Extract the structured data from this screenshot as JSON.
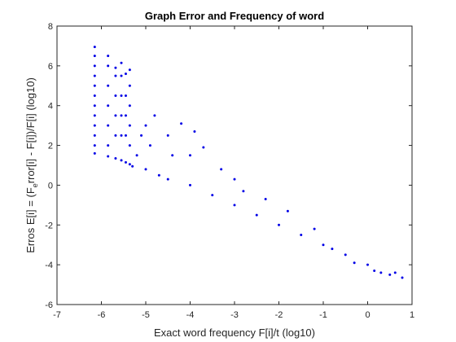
{
  "chart_data": {
    "type": "scatter",
    "title": "Graph Error and Frequency of word",
    "xlabel": "Exact word frequency F[i]/t (log10)",
    "ylabel_parts": [
      "Erros E[i] = (F",
      "e",
      "rror[i] - F[i])/F[i] (log10)"
    ],
    "xlim": [
      -7,
      1
    ],
    "ylim": [
      -6,
      8
    ],
    "xticks": [
      -7,
      -6,
      -5,
      -4,
      -3,
      -2,
      -1,
      0,
      1
    ],
    "yticks": [
      -6,
      -4,
      -2,
      0,
      2,
      4,
      6,
      8
    ],
    "xtick_labels": [
      "-7",
      "-6",
      "-5",
      "-4",
      "-3",
      "-2",
      "-1",
      "0",
      "1"
    ],
    "ytick_labels": [
      "-6",
      "-4",
      "-2",
      "0",
      "2",
      "4",
      "6",
      "8"
    ],
    "grid": false,
    "marker_color": "#0000e6",
    "series": [
      {
        "points": [
          [
            -6.15,
            1.6
          ],
          [
            -6.15,
            2.0
          ],
          [
            -6.15,
            2.5
          ],
          [
            -6.15,
            3.0
          ],
          [
            -6.15,
            3.5
          ],
          [
            -6.15,
            4.0
          ],
          [
            -6.15,
            4.5
          ],
          [
            -6.15,
            5.0
          ],
          [
            -6.15,
            5.5
          ],
          [
            -6.15,
            6.0
          ],
          [
            -6.15,
            6.5
          ],
          [
            -6.15,
            6.95
          ],
          [
            -5.85,
            1.45
          ],
          [
            -5.85,
            2.0
          ],
          [
            -5.85,
            3.0
          ],
          [
            -5.85,
            4.0
          ],
          [
            -5.85,
            5.0
          ],
          [
            -5.85,
            6.0
          ],
          [
            -5.85,
            6.5
          ],
          [
            -5.68,
            1.35
          ],
          [
            -5.68,
            2.5
          ],
          [
            -5.68,
            3.5
          ],
          [
            -5.68,
            4.5
          ],
          [
            -5.68,
            5.5
          ],
          [
            -5.68,
            5.9
          ],
          [
            -5.55,
            1.25
          ],
          [
            -5.55,
            2.5
          ],
          [
            -5.55,
            3.5
          ],
          [
            -5.55,
            4.5
          ],
          [
            -5.55,
            5.5
          ],
          [
            -5.55,
            6.15
          ],
          [
            -5.45,
            1.15
          ],
          [
            -5.45,
            2.5
          ],
          [
            -5.45,
            3.5
          ],
          [
            -5.45,
            4.5
          ],
          [
            -5.45,
            5.6
          ],
          [
            -5.36,
            1.05
          ],
          [
            -5.36,
            2.0
          ],
          [
            -5.36,
            3.0
          ],
          [
            -5.36,
            4.0
          ],
          [
            -5.36,
            5.0
          ],
          [
            -5.36,
            5.8
          ],
          [
            -5.3,
            0.95
          ],
          [
            -5.2,
            1.5
          ],
          [
            -5.1,
            2.5
          ],
          [
            -5.0,
            3.0
          ],
          [
            -5.0,
            0.8
          ],
          [
            -4.9,
            2.0
          ],
          [
            -4.8,
            3.5
          ],
          [
            -4.7,
            0.5
          ],
          [
            -4.5,
            2.5
          ],
          [
            -4.5,
            0.3
          ],
          [
            -4.4,
            1.5
          ],
          [
            -4.2,
            3.1
          ],
          [
            -4.0,
            0.0
          ],
          [
            -4.0,
            1.5
          ],
          [
            -3.9,
            2.7
          ],
          [
            -3.7,
            1.9
          ],
          [
            -3.5,
            -0.5
          ],
          [
            -3.3,
            0.8
          ],
          [
            -3.0,
            -1.0
          ],
          [
            -3.0,
            0.3
          ],
          [
            -2.8,
            -0.3
          ],
          [
            -2.5,
            -1.5
          ],
          [
            -2.3,
            -0.7
          ],
          [
            -2.0,
            -2.0
          ],
          [
            -1.8,
            -1.3
          ],
          [
            -1.5,
            -2.5
          ],
          [
            -1.2,
            -2.2
          ],
          [
            -1.0,
            -3.0
          ],
          [
            -0.8,
            -3.2
          ],
          [
            -0.5,
            -3.5
          ],
          [
            -0.3,
            -3.9
          ],
          [
            0.0,
            -4.0
          ],
          [
            0.15,
            -4.3
          ],
          [
            0.3,
            -4.4
          ],
          [
            0.5,
            -4.5
          ],
          [
            0.62,
            -4.4
          ],
          [
            0.78,
            -4.65
          ]
        ]
      }
    ]
  }
}
